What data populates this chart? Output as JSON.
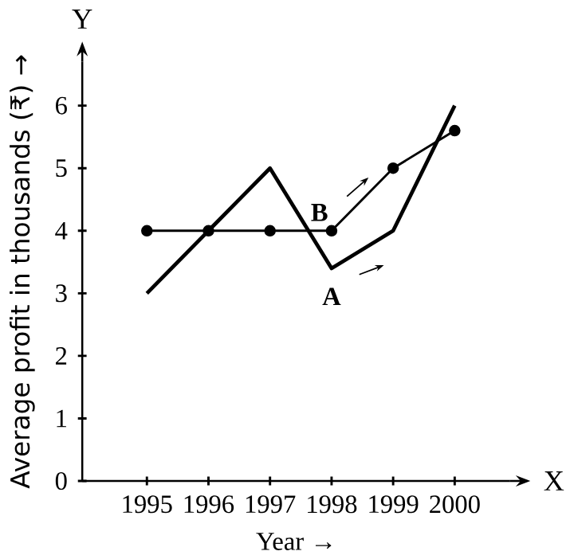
{
  "chart_data": {
    "type": "line",
    "xlabel": "Year →",
    "ylabel": "Average profit in thousands (₹) →",
    "categories": [
      "1995",
      "1996",
      "1997",
      "1998",
      "1999",
      "2000"
    ],
    "series": [
      {
        "name": "A",
        "color": "#000000",
        "marker": "none",
        "values": [
          3,
          4,
          5,
          3.4,
          4,
          6
        ]
      },
      {
        "name": "B",
        "color": "#000000",
        "marker": "circle",
        "values": [
          4,
          4,
          4,
          4,
          5,
          5.6
        ]
      }
    ],
    "ylim": [
      0,
      6.7
    ],
    "yticks": [
      0,
      1,
      2,
      3,
      4,
      5,
      6
    ],
    "grid": false,
    "legend": false,
    "annotations": [
      "Y",
      "X"
    ]
  }
}
